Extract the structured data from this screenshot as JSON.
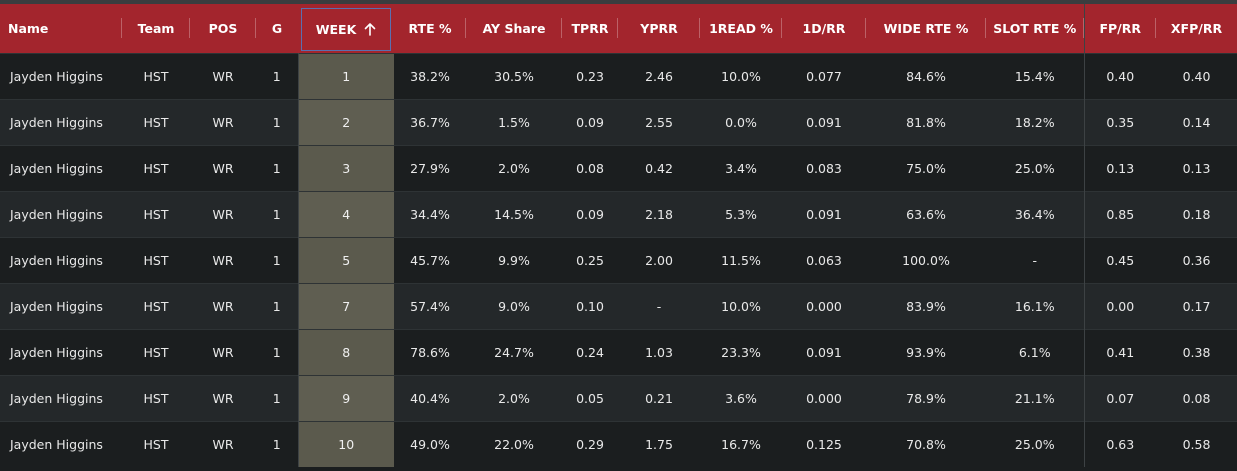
{
  "columns": {
    "name": "Name",
    "team": "Team",
    "pos": "POS",
    "g": "G",
    "week": "WEEK",
    "rte": "RTE %",
    "ay_share": "AY Share",
    "tprr": "TPRR",
    "yprr": "YPRR",
    "read1": "1READ %",
    "d1rr": "1D/RR",
    "wide_rte": "WIDE RTE %",
    "slot_rte": "SLOT RTE %",
    "fprr": "FP/RR",
    "xfprr": "XFP/RR"
  },
  "sort": {
    "column": "week",
    "direction": "ascending",
    "icon": "arrow-up-icon"
  },
  "rows": [
    {
      "name": "Jayden Higgins",
      "team": "HST",
      "pos": "WR",
      "g": "1",
      "week": "1",
      "rte": "38.2%",
      "ay_share": "30.5%",
      "tprr": "0.23",
      "yprr": "2.46",
      "read1": "10.0%",
      "d1rr": "0.077",
      "wide_rte": "84.6%",
      "slot_rte": "15.4%",
      "fprr": "0.40",
      "xfprr": "0.40"
    },
    {
      "name": "Jayden Higgins",
      "team": "HST",
      "pos": "WR",
      "g": "1",
      "week": "2",
      "rte": "36.7%",
      "ay_share": "1.5%",
      "tprr": "0.09",
      "yprr": "2.55",
      "read1": "0.0%",
      "d1rr": "0.091",
      "wide_rte": "81.8%",
      "slot_rte": "18.2%",
      "fprr": "0.35",
      "xfprr": "0.14"
    },
    {
      "name": "Jayden Higgins",
      "team": "HST",
      "pos": "WR",
      "g": "1",
      "week": "3",
      "rte": "27.9%",
      "ay_share": "2.0%",
      "tprr": "0.08",
      "yprr": "0.42",
      "read1": "3.4%",
      "d1rr": "0.083",
      "wide_rte": "75.0%",
      "slot_rte": "25.0%",
      "fprr": "0.13",
      "xfprr": "0.13"
    },
    {
      "name": "Jayden Higgins",
      "team": "HST",
      "pos": "WR",
      "g": "1",
      "week": "4",
      "rte": "34.4%",
      "ay_share": "14.5%",
      "tprr": "0.09",
      "yprr": "2.18",
      "read1": "5.3%",
      "d1rr": "0.091",
      "wide_rte": "63.6%",
      "slot_rte": "36.4%",
      "fprr": "0.85",
      "xfprr": "0.18"
    },
    {
      "name": "Jayden Higgins",
      "team": "HST",
      "pos": "WR",
      "g": "1",
      "week": "5",
      "rte": "45.7%",
      "ay_share": "9.9%",
      "tprr": "0.25",
      "yprr": "2.00",
      "read1": "11.5%",
      "d1rr": "0.063",
      "wide_rte": "100.0%",
      "slot_rte": "-",
      "fprr": "0.45",
      "xfprr": "0.36"
    },
    {
      "name": "Jayden Higgins",
      "team": "HST",
      "pos": "WR",
      "g": "1",
      "week": "7",
      "rte": "57.4%",
      "ay_share": "9.0%",
      "tprr": "0.10",
      "yprr": "-",
      "read1": "10.0%",
      "d1rr": "0.000",
      "wide_rte": "83.9%",
      "slot_rte": "16.1%",
      "fprr": "0.00",
      "xfprr": "0.17"
    },
    {
      "name": "Jayden Higgins",
      "team": "HST",
      "pos": "WR",
      "g": "1",
      "week": "8",
      "rte": "78.6%",
      "ay_share": "24.7%",
      "tprr": "0.24",
      "yprr": "1.03",
      "read1": "23.3%",
      "d1rr": "0.091",
      "wide_rte": "93.9%",
      "slot_rte": "6.1%",
      "fprr": "0.41",
      "xfprr": "0.38"
    },
    {
      "name": "Jayden Higgins",
      "team": "HST",
      "pos": "WR",
      "g": "1",
      "week": "9",
      "rte": "40.4%",
      "ay_share": "2.0%",
      "tprr": "0.05",
      "yprr": "0.21",
      "read1": "3.6%",
      "d1rr": "0.000",
      "wide_rte": "78.9%",
      "slot_rte": "21.1%",
      "fprr": "0.07",
      "xfprr": "0.08"
    },
    {
      "name": "Jayden Higgins",
      "team": "HST",
      "pos": "WR",
      "g": "1",
      "week": "10",
      "rte": "49.0%",
      "ay_share": "22.0%",
      "tprr": "0.29",
      "yprr": "1.75",
      "read1": "16.7%",
      "d1rr": "0.125",
      "wide_rte": "70.8%",
      "slot_rte": "25.0%",
      "fprr": "0.63",
      "xfprr": "0.58"
    }
  ],
  "colors": {
    "header_bg": "#a3252d",
    "row_bg": "#1b1e1f",
    "row_alt_bg": "#24282a",
    "week_highlight": "#5b5a4d",
    "sort_outline": "#5a6fb0"
  }
}
